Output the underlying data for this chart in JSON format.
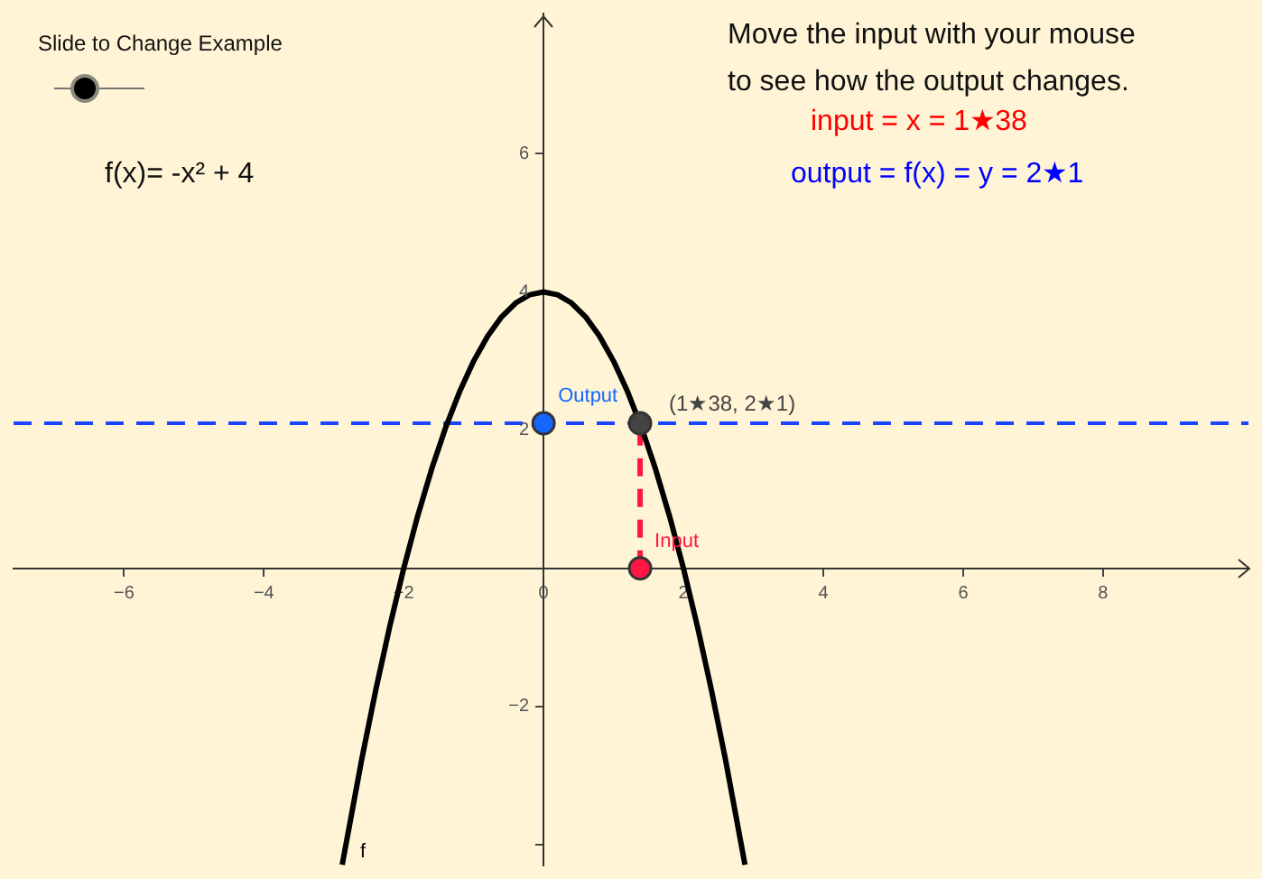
{
  "chart_data": {
    "type": "line",
    "annotations": [
      "Slide to Change Example",
      "f(x)= -x² + 4",
      "Move the input with your mouse\nto see how the output changes.",
      "input = x = 1★38",
      "output = f(x) = y = 2★1",
      {
        "text": "(1★38, 2★1)",
        "x": 1.38,
        "y": 2.1
      }
    ],
    "series": [
      {
        "name": "f",
        "color": "#000000",
        "marker": "none",
        "line_style": "solid",
        "x": [
          -2.88,
          -2.6,
          -2.4,
          -2.2,
          -2.0,
          -1.8,
          -1.6,
          -1.4,
          -1.2,
          -1.0,
          -0.8,
          -0.6,
          -0.4,
          -0.2,
          0,
          0.2,
          0.4,
          0.6,
          0.8,
          1.0,
          1.2,
          1.4,
          1.6,
          1.8,
          2.0,
          2.2,
          2.4,
          2.6,
          2.88
        ],
        "values": [
          -4.29,
          -2.76,
          -1.76,
          -0.84,
          0,
          0.76,
          1.44,
          2.04,
          2.56,
          3,
          3.36,
          3.64,
          3.84,
          3.96,
          4,
          3.96,
          3.84,
          3.64,
          3.36,
          3,
          2.56,
          2.04,
          1.44,
          0.76,
          0,
          -0.84,
          -1.76,
          -2.76,
          -4.29
        ]
      },
      {
        "color": "#ff1744",
        "marker": "none",
        "line_style": "dashed",
        "x": [
          1.38,
          1.38
        ],
        "values": [
          0,
          2.1
        ]
      },
      {
        "name": "Output",
        "type": "scatter",
        "color": "#1565ff",
        "marker": "circle",
        "x": [
          0
        ],
        "values": [
          2.1
        ]
      },
      {
        "type": "scatter",
        "color": "#444444",
        "marker": "circle",
        "x": [
          1.38
        ],
        "values": [
          2.1
        ]
      },
      {
        "name": "Input",
        "type": "scatter",
        "color": "#ff1744",
        "marker": "circle",
        "x": [
          1.38
        ],
        "values": [
          0
        ]
      }
    ],
    "ref_lines": [
      {
        "axis": "y",
        "value": 2.1,
        "color": "#1a44ff",
        "line_style": "dashed"
      }
    ],
    "xlim": [
      -7.58,
      10.08
    ],
    "ylim": [
      -4.3,
      8.03
    ],
    "xticks": [
      -6,
      -4,
      -2,
      0,
      2,
      4,
      6,
      8
    ],
    "yticks": [
      {
        "value": -4,
        "label": null
      },
      -2,
      2,
      4,
      6
    ],
    "grid": false,
    "legend": false
  }
}
